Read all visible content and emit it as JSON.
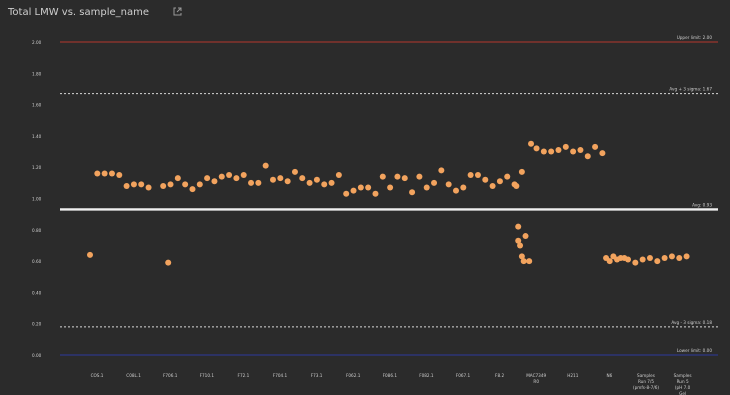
{
  "header": {
    "title": "Total LMW vs. sample_name",
    "title_icon": "external-link-icon"
  },
  "colors": {
    "background": "#2b2b2b",
    "upper_limit": "#b6372d",
    "lower_limit": "#2c3a9e",
    "sigma_lines": "#d8d8d8",
    "avg_line": "#efefef",
    "points": "#f2a35e",
    "text": "#cfcfcf"
  },
  "chart_data": {
    "type": "scatter",
    "title": "Total LMW vs. sample_name",
    "xlabel": "",
    "ylabel": "",
    "ylim": [
      0.0,
      2.1
    ],
    "y_ticks": [
      "0.00",
      "0.20",
      "0.40",
      "0.60",
      "0.80",
      "1.00",
      "1.20",
      "1.40",
      "1.60",
      "1.80",
      "2.00"
    ],
    "grid": false,
    "x_tick_labels": [
      "COS.1",
      "C08L.1",
      "F706.1",
      "F710.1",
      "F72.1",
      "F704.1",
      "F73.1",
      "F062.1",
      "F086.1",
      "F082.1",
      "F067.1",
      "F8.2",
      "MAC7349 R0",
      "H211",
      "N6",
      "Samples Run 7/5 (pmfs-8-7/6)",
      "Samples Run 5 (pH 7.0 Gel Count)"
    ],
    "reference_lines": [
      {
        "label": "Upper limit: 2.00",
        "y": 2.0,
        "style": "solid",
        "color": "#b6372d"
      },
      {
        "label": "Avg + 3 sigma: 1.67",
        "y": 1.67,
        "style": "dashed",
        "color": "#d8d8d8"
      },
      {
        "label": "Avg: 0.93",
        "y": 0.93,
        "style": "solid",
        "color": "#efefef"
      },
      {
        "label": "Avg - 3 sigma: 0.18",
        "y": 0.18,
        "style": "dashed",
        "color": "#d8d8d8"
      },
      {
        "label": "Lower limit: 0.00",
        "y": 0.0,
        "style": "solid",
        "color": "#2c3a9e"
      }
    ],
    "series": [
      {
        "x": [
          1.0,
          1.2,
          1.4,
          1.6,
          1.8,
          2.0,
          2.2,
          2.4,
          2.6,
          3.0,
          3.2,
          3.4,
          3.6,
          3.8,
          4.0,
          4.2,
          4.4,
          4.6,
          4.8,
          5.0,
          5.2,
          5.4,
          5.6,
          5.8,
          6.0,
          6.2,
          6.4,
          6.6,
          6.8,
          7.0,
          7.2,
          7.4,
          7.6,
          7.8,
          8.0,
          8.2,
          8.4,
          8.6,
          8.8,
          9.0,
          9.2,
          9.4,
          9.6,
          9.8,
          10.0,
          10.2,
          10.4,
          10.6,
          10.8,
          11.0,
          11.2,
          11.4,
          11.6,
          11.8,
          12.0,
          12.2,
          12.4,
          12.6,
          12.8,
          12.65,
          12.7,
          12.75,
          12.8,
          12.85,
          12.7,
          12.9,
          13.0,
          13.05,
          13.2,
          13.4,
          13.6,
          13.8,
          14.0,
          14.2,
          14.4,
          14.6,
          14.8,
          15.0,
          15.2,
          15.4,
          15.6,
          15.1,
          15.3,
          15.5,
          15.7,
          15.9,
          16.1,
          16.3,
          16.5,
          16.7,
          16.9,
          17.1,
          17.3
        ],
        "y": [
          0.64,
          1.16,
          1.16,
          1.16,
          1.15,
          1.08,
          1.09,
          1.09,
          1.07,
          1.08,
          1.09,
          1.13,
          1.09,
          1.06,
          1.09,
          1.13,
          1.11,
          1.14,
          1.15,
          1.13,
          1.15,
          1.1,
          1.1,
          1.21,
          1.12,
          1.13,
          1.11,
          1.17,
          1.13,
          1.1,
          1.12,
          1.09,
          1.1,
          1.15,
          1.03,
          1.05,
          1.07,
          1.07,
          1.03,
          1.14,
          1.07,
          1.14,
          1.13,
          1.04,
          1.14,
          1.07,
          1.1,
          1.18,
          1.09,
          1.05,
          1.07,
          1.15,
          1.15,
          1.12,
          1.08,
          1.11,
          1.14,
          1.09,
          1.17,
          1.08,
          0.73,
          0.7,
          0.63,
          0.6,
          0.82,
          0.76,
          0.6,
          1.35,
          1.32,
          1.3,
          1.3,
          1.31,
          1.33,
          1.3,
          1.31,
          1.27,
          1.33,
          1.29,
          0.6,
          0.61,
          0.62,
          0.62,
          0.63,
          0.62,
          0.61,
          0.59,
          0.61,
          0.62,
          0.6,
          0.62,
          0.63,
          0.62,
          0.63
        ]
      }
    ],
    "isolated_points": [
      {
        "x": 3.0,
        "y": 0.59
      }
    ]
  }
}
